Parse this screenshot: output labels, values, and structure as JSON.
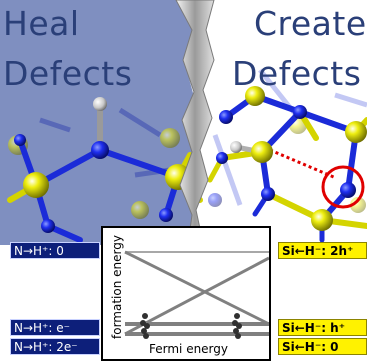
{
  "headline_left_line1": "Heal",
  "headline_left_line2": "Defects",
  "headline_right_line1": "Create",
  "headline_right_line2": "Defects",
  "left_labels": [
    "N→H⁺: 0",
    "N→H⁺: e⁻",
    "N→H⁺: 2e⁻"
  ],
  "right_labels": [
    "Si←H⁻: 2h⁺",
    "Si←H⁻: h⁺",
    "Si←H⁻: 0"
  ],
  "plot": {
    "xlabel": "Fermi energy",
    "ylabel": "formation energy"
  },
  "colors": {
    "left_panel_tint": "#7f8fc0",
    "bond_blue": "#1b2bd8",
    "atom_yellow": "#e6e600",
    "defect_marker": "#e00000",
    "label_blue": "#0d1f7a",
    "label_yellow": "#fff200"
  }
}
